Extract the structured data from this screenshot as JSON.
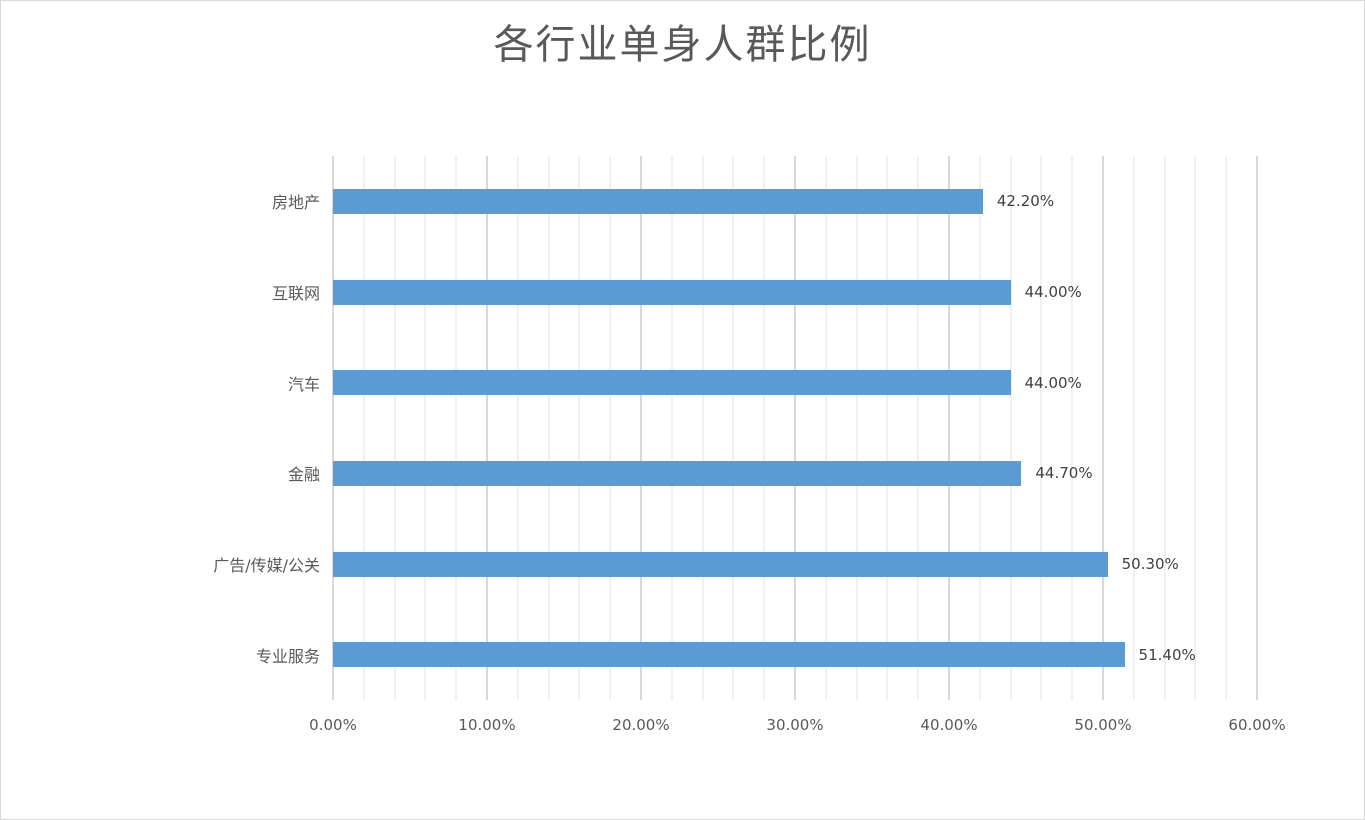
{
  "chart_data": {
    "type": "bar",
    "orientation": "horizontal",
    "title": "各行业单身人群比例",
    "xlabel": "",
    "ylabel": "",
    "categories": [
      "房地产",
      "互联网",
      "汽车",
      "金融",
      "广告/传媒/公关",
      "专业服务"
    ],
    "values": [
      42.2,
      44.0,
      44.0,
      44.7,
      50.3,
      51.4
    ],
    "value_labels": [
      "42.20%",
      "44.00%",
      "44.00%",
      "44.70%",
      "50.30%",
      "51.40%"
    ],
    "xlim": [
      0,
      60
    ],
    "x_ticks": [
      "0.00%",
      "10.00%",
      "20.00%",
      "30.00%",
      "40.00%",
      "50.00%",
      "60.00%"
    ],
    "grid": true,
    "legend": "none",
    "bar_color": "#5b9bd5"
  },
  "colors": {
    "bar": "#5b9bd5",
    "title": "#595959",
    "major_grid": "#d9d9d9",
    "minor_grid": "#f0f0f0"
  }
}
